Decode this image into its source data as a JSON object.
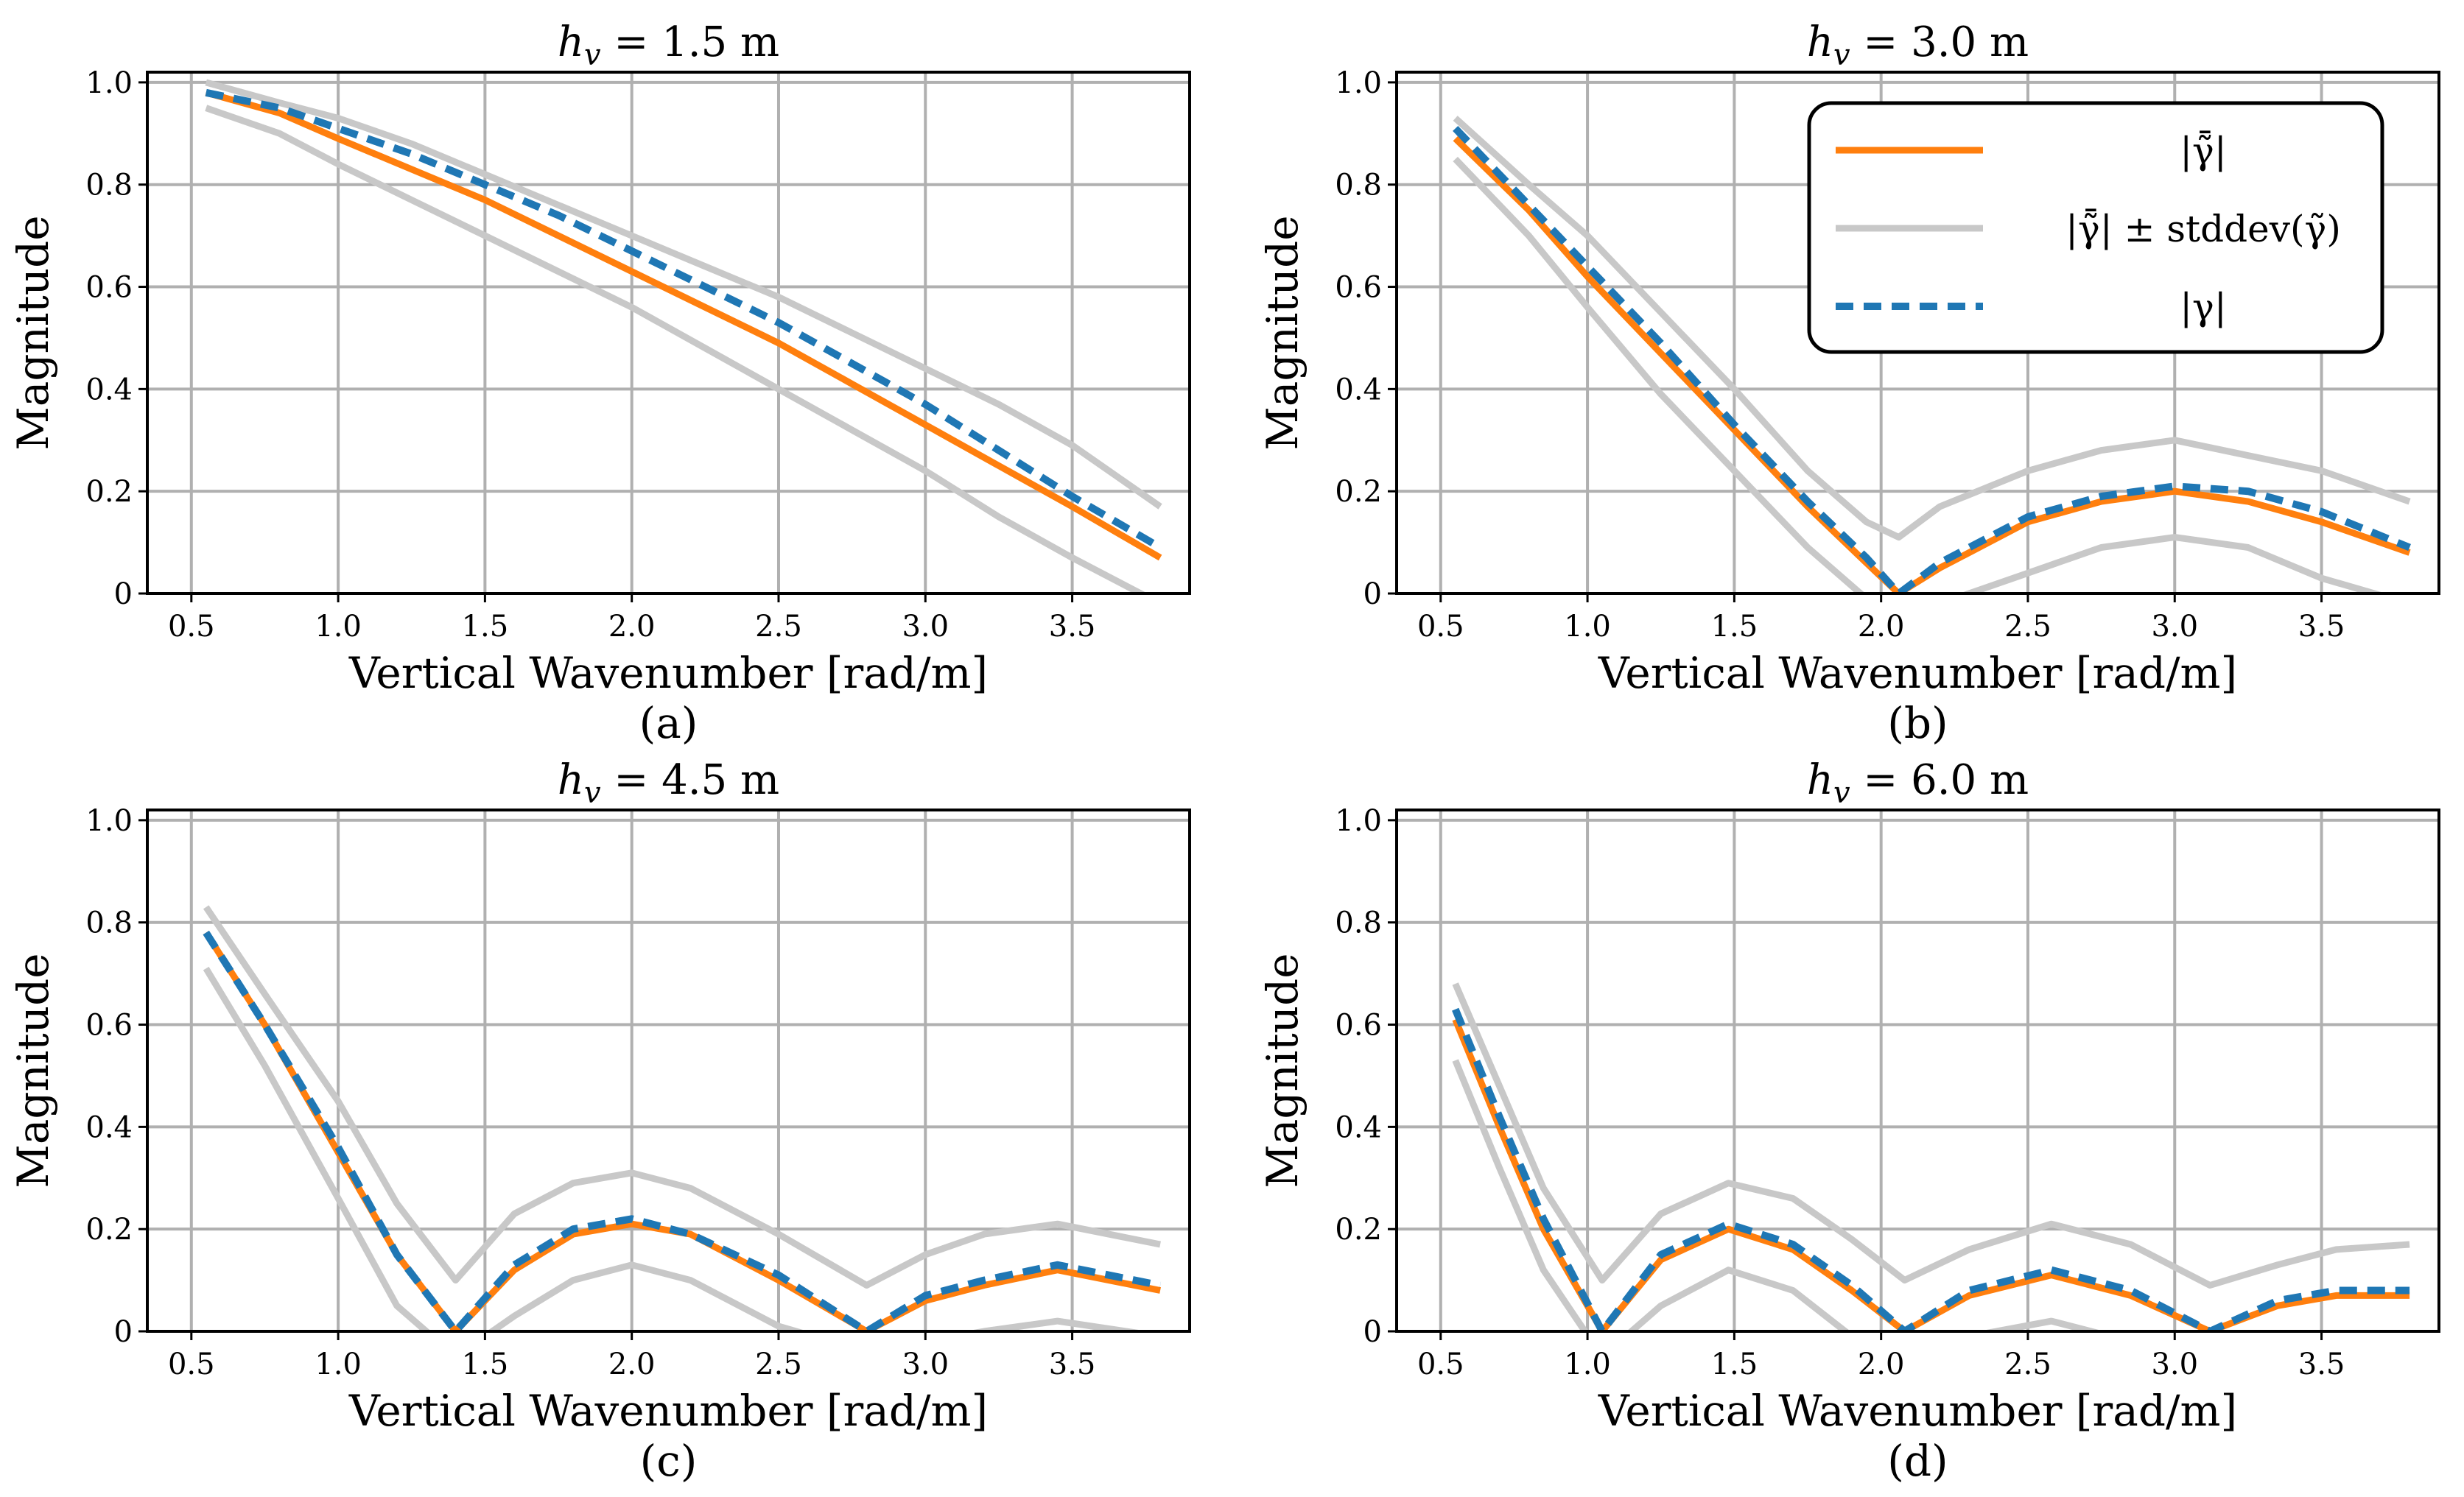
{
  "colors": {
    "mean": "#ff7f0e",
    "stddev": "#c8c8c8",
    "theory": "#1f77b4",
    "grid": "#b0b0b0",
    "axes": "#000000"
  },
  "legend": {
    "mean_label": "|γ̃̄|",
    "stddev_label": "|γ̃̄| ± stddev(γ̃)",
    "theory_label": "|γ|"
  },
  "chart_data": [
    {
      "type": "line",
      "title": "h_v = 1.5 m",
      "title_var": "h",
      "title_sub": "v",
      "title_rest": " = 1.5 m",
      "caption": "(a)",
      "xlabel": "Vertical Wavenumber [rad/m]",
      "ylabel": "Magnitude",
      "xlim": [
        0.35,
        3.9
      ],
      "ylim": [
        0,
        1.02
      ],
      "xticks": [
        "0.5",
        "1.0",
        "1.5",
        "2.0",
        "2.5",
        "3.0",
        "3.5"
      ],
      "yticks": [
        "0",
        "0.2",
        "0.4",
        "0.6",
        "0.8",
        "1.0"
      ],
      "grid": true,
      "legend_visible": false,
      "x": [
        0.55,
        0.8,
        1.0,
        1.25,
        1.5,
        1.75,
        2.0,
        2.25,
        2.5,
        2.75,
        3.0,
        3.25,
        3.5,
        3.8
      ],
      "series": [
        {
          "name": "mean",
          "values": [
            0.98,
            0.94,
            0.89,
            0.83,
            0.77,
            0.7,
            0.63,
            0.56,
            0.49,
            0.41,
            0.33,
            0.25,
            0.17,
            0.07
          ]
        },
        {
          "name": "upper",
          "values": [
            1.0,
            0.96,
            0.93,
            0.88,
            0.82,
            0.76,
            0.7,
            0.64,
            0.58,
            0.51,
            0.44,
            0.37,
            0.29,
            0.17
          ]
        },
        {
          "name": "lower",
          "values": [
            0.95,
            0.9,
            0.84,
            0.77,
            0.7,
            0.63,
            0.56,
            0.48,
            0.4,
            0.32,
            0.24,
            0.15,
            0.07,
            -0.02
          ]
        },
        {
          "name": "theory",
          "values": [
            0.98,
            0.95,
            0.91,
            0.86,
            0.8,
            0.74,
            0.67,
            0.6,
            0.53,
            0.45,
            0.37,
            0.28,
            0.19,
            0.09
          ]
        }
      ]
    },
    {
      "type": "line",
      "title": "h_v = 3.0 m",
      "title_var": "h",
      "title_sub": "v",
      "title_rest": " = 3.0 m",
      "caption": "(b)",
      "xlabel": "Vertical Wavenumber [rad/m]",
      "ylabel": "Magnitude",
      "xlim": [
        0.35,
        3.9
      ],
      "ylim": [
        0,
        1.02
      ],
      "xticks": [
        "0.5",
        "1.0",
        "1.5",
        "2.0",
        "2.5",
        "3.0",
        "3.5"
      ],
      "yticks": [
        "0",
        "0.2",
        "0.4",
        "0.6",
        "0.8",
        "1.0"
      ],
      "grid": true,
      "legend_visible": true,
      "x": [
        0.55,
        0.8,
        1.0,
        1.25,
        1.5,
        1.75,
        1.95,
        2.06,
        2.2,
        2.5,
        2.75,
        3.0,
        3.25,
        3.5,
        3.8
      ],
      "series": [
        {
          "name": "mean",
          "values": [
            0.89,
            0.75,
            0.62,
            0.47,
            0.32,
            0.17,
            0.06,
            0.0,
            0.05,
            0.14,
            0.18,
            0.2,
            0.18,
            0.14,
            0.08
          ]
        },
        {
          "name": "upper",
          "values": [
            0.93,
            0.8,
            0.7,
            0.55,
            0.4,
            0.24,
            0.14,
            0.11,
            0.17,
            0.24,
            0.28,
            0.3,
            0.27,
            0.24,
            0.18
          ]
        },
        {
          "name": "lower",
          "values": [
            0.85,
            0.7,
            0.56,
            0.39,
            0.24,
            0.09,
            -0.01,
            -0.03,
            -0.02,
            0.04,
            0.09,
            0.11,
            0.09,
            0.03,
            -0.02
          ]
        },
        {
          "name": "theory",
          "values": [
            0.91,
            0.76,
            0.64,
            0.49,
            0.33,
            0.18,
            0.07,
            0.0,
            0.06,
            0.15,
            0.19,
            0.21,
            0.2,
            0.16,
            0.09
          ]
        }
      ]
    },
    {
      "type": "line",
      "title": "h_v = 4.5 m",
      "title_var": "h",
      "title_sub": "v",
      "title_rest": " = 4.5 m",
      "caption": "(c)",
      "xlabel": "Vertical Wavenumber [rad/m]",
      "ylabel": "Magnitude",
      "xlim": [
        0.35,
        3.9
      ],
      "ylim": [
        0,
        1.02
      ],
      "xticks": [
        "0.5",
        "1.0",
        "1.5",
        "2.0",
        "2.5",
        "3.0",
        "3.5"
      ],
      "yticks": [
        "0",
        "0.2",
        "0.4",
        "0.6",
        "0.8",
        "1.0"
      ],
      "grid": true,
      "legend_visible": false,
      "x": [
        0.55,
        0.75,
        1.0,
        1.2,
        1.4,
        1.6,
        1.8,
        2.0,
        2.2,
        2.5,
        2.8,
        3.0,
        3.2,
        3.45,
        3.8
      ],
      "series": [
        {
          "name": "mean",
          "values": [
            0.78,
            0.6,
            0.35,
            0.15,
            0.0,
            0.12,
            0.19,
            0.21,
            0.19,
            0.1,
            0.0,
            0.06,
            0.09,
            0.12,
            0.08
          ]
        },
        {
          "name": "upper",
          "values": [
            0.83,
            0.66,
            0.45,
            0.25,
            0.1,
            0.23,
            0.29,
            0.31,
            0.28,
            0.19,
            0.09,
            0.15,
            0.19,
            0.21,
            0.17
          ]
        },
        {
          "name": "lower",
          "values": [
            0.71,
            0.52,
            0.26,
            0.05,
            -0.05,
            0.03,
            0.1,
            0.13,
            0.1,
            0.01,
            -0.04,
            -0.02,
            0.0,
            0.02,
            -0.01
          ]
        },
        {
          "name": "theory",
          "values": [
            0.78,
            0.6,
            0.36,
            0.15,
            0.0,
            0.13,
            0.2,
            0.22,
            0.19,
            0.11,
            0.0,
            0.07,
            0.1,
            0.13,
            0.09
          ]
        }
      ]
    },
    {
      "type": "line",
      "title": "h_v = 6.0 m",
      "title_var": "h",
      "title_sub": "v",
      "title_rest": " = 6.0 m",
      "caption": "(d)",
      "xlabel": "Vertical Wavenumber [rad/m]",
      "ylabel": "Magnitude",
      "xlim": [
        0.35,
        3.9
      ],
      "ylim": [
        0,
        1.02
      ],
      "xticks": [
        "0.5",
        "1.0",
        "1.5",
        "2.0",
        "2.5",
        "3.0",
        "3.5"
      ],
      "yticks": [
        "0",
        "0.2",
        "0.4",
        "0.6",
        "0.8",
        "1.0"
      ],
      "grid": true,
      "legend_visible": false,
      "x": [
        0.55,
        0.7,
        0.85,
        1.05,
        1.25,
        1.48,
        1.7,
        1.9,
        2.08,
        2.3,
        2.58,
        2.85,
        3.12,
        3.35,
        3.55,
        3.8
      ],
      "series": [
        {
          "name": "mean",
          "values": [
            0.61,
            0.4,
            0.2,
            0.0,
            0.14,
            0.2,
            0.16,
            0.08,
            0.0,
            0.07,
            0.11,
            0.07,
            0.0,
            0.05,
            0.07,
            0.07
          ]
        },
        {
          "name": "upper",
          "values": [
            0.68,
            0.48,
            0.28,
            0.1,
            0.23,
            0.29,
            0.26,
            0.18,
            0.1,
            0.16,
            0.21,
            0.17,
            0.09,
            0.13,
            0.16,
            0.17
          ]
        },
        {
          "name": "lower",
          "values": [
            0.53,
            0.32,
            0.12,
            -0.05,
            0.05,
            0.12,
            0.08,
            -0.01,
            -0.04,
            -0.01,
            0.02,
            -0.02,
            -0.04,
            -0.02,
            -0.01,
            -0.01
          ]
        },
        {
          "name": "theory",
          "values": [
            0.63,
            0.42,
            0.22,
            0.0,
            0.15,
            0.21,
            0.17,
            0.09,
            0.0,
            0.08,
            0.12,
            0.08,
            0.0,
            0.06,
            0.08,
            0.08
          ]
        }
      ]
    }
  ]
}
